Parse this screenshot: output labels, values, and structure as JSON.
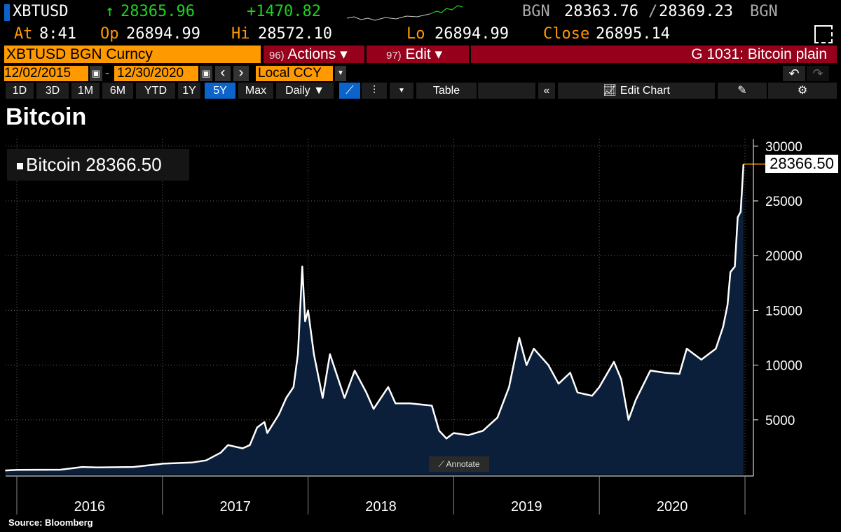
{
  "header": {
    "ticker": "XBTUSD",
    "last": "28365.96",
    "change": "+1470.82",
    "bid_src": "BGN",
    "bid": "28363.76",
    "sep": "/",
    "ask": "28369.23",
    "ask_src": "BGN",
    "at_label": "At",
    "at": "8:41",
    "op_label": "Op",
    "op": "26894.99",
    "hi_label": "Hi",
    "hi": "28572.10",
    "lo_label": "Lo",
    "lo": "26894.99",
    "close_label": "Close",
    "close": "26895.14",
    "arrow": "↑"
  },
  "command": {
    "security": "XBTUSD BGN Curncy",
    "actions_num": "96)",
    "actions": "Actions ▾",
    "edit_num": "97)",
    "edit": "Edit ▾",
    "chart_name": "G 1031: Bitcoin plain"
  },
  "range": {
    "start": "12/02/2015",
    "dash": "-",
    "end": "12/30/2020",
    "prev": "‹",
    "next": "›",
    "currency": "Local CCY"
  },
  "toolbar": {
    "periods": [
      "1D",
      "3D",
      "1M",
      "6M",
      "YTD",
      "1Y",
      "5Y",
      "Max"
    ],
    "active": "5Y",
    "frequency": "Daily ▼",
    "table": "Table",
    "collapse": "«",
    "edit_chart": "Edit Chart"
  },
  "colors": {
    "orange": "#ff9900",
    "red": "#97001a",
    "green": "#1ed31e",
    "blue": "#0c63c9",
    "area": "#0b1f3a"
  },
  "chart_data": {
    "type": "area",
    "title": "Bitcoin",
    "legend": "Bitcoin 28366.50",
    "last_value_label": "28366.50",
    "source": "Source: Bloomberg",
    "annotate": "Annotate",
    "ylim": [
      0,
      30000
    ],
    "yticks": [
      5000,
      10000,
      15000,
      20000,
      25000,
      30000
    ],
    "xlim": [
      2015.92,
      2021.0
    ],
    "xticks": [
      "2016",
      "2017",
      "2018",
      "2019",
      "2020"
    ],
    "x": [
      2015.92,
      2016.0,
      2016.3,
      2016.45,
      2016.55,
      2016.8,
      2016.98,
      2017.0,
      2017.2,
      2017.3,
      2017.4,
      2017.45,
      2017.55,
      2017.6,
      2017.65,
      2017.7,
      2017.72,
      2017.8,
      2017.85,
      2017.9,
      2017.93,
      2017.96,
      2017.98,
      2018.0,
      2018.04,
      2018.1,
      2018.15,
      2018.2,
      2018.25,
      2018.32,
      2018.4,
      2018.45,
      2018.55,
      2018.6,
      2018.7,
      2018.85,
      2018.9,
      2018.95,
      2019.0,
      2019.1,
      2019.2,
      2019.3,
      2019.38,
      2019.45,
      2019.5,
      2019.55,
      2019.65,
      2019.72,
      2019.8,
      2019.85,
      2019.95,
      2020.0,
      2020.1,
      2020.15,
      2020.2,
      2020.25,
      2020.35,
      2020.45,
      2020.55,
      2020.6,
      2020.7,
      2020.8,
      2020.85,
      2020.88,
      2020.9,
      2020.93,
      2020.95,
      2020.97,
      2020.99
    ],
    "values": [
      380,
      430,
      450,
      700,
      650,
      700,
      960,
      1000,
      1100,
      1300,
      2000,
      2700,
      2400,
      2700,
      4300,
      4800,
      3800,
      5500,
      7000,
      8000,
      11000,
      19000,
      14000,
      15000,
      11000,
      7000,
      11000,
      9000,
      7000,
      9500,
      7500,
      6000,
      8000,
      6500,
      6500,
      6300,
      4000,
      3300,
      3800,
      3600,
      4000,
      5200,
      8000,
      12500,
      10000,
      11500,
      10000,
      8300,
      9300,
      7500,
      7200,
      8000,
      10300,
      8700,
      5000,
      6800,
      9500,
      9300,
      9200,
      11500,
      10500,
      11500,
      13500,
      15500,
      18500,
      19000,
      23500,
      24000,
      28366.5
    ]
  }
}
